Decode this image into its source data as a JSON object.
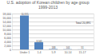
{
  "chart_data": {
    "type": "bar",
    "title": "U.S. adoption of Korean children by age group",
    "subtitle": "1999-2013",
    "categories": [
      "Under 1",
      "1-4",
      "5-9",
      "10-14",
      "15-17"
    ],
    "values": [
      16995,
      3561,
      183,
      101,
      51
    ],
    "value_labels": [
      "16,995",
      "3,561",
      "183",
      "101",
      "51"
    ],
    "data_labels": true,
    "color": "#4f81bd",
    "ylim": [
      0,
      18000
    ],
    "yticks": [
      0,
      {
        "value": 2000,
        "label": "2,000"
      },
      {
        "value": 4000,
        "label": "4,000"
      },
      {
        "value": 6000,
        "label": "6,000"
      },
      {
        "value": 8000,
        "label": "8,000"
      },
      {
        "value": 10000,
        "label": "10,000"
      },
      {
        "value": 12000,
        "label": "12,000"
      },
      {
        "value": 14000,
        "label": "14,000"
      },
      {
        "value": 16000,
        "label": "16,000"
      },
      {
        "value": 18000,
        "label": "18,000"
      }
    ],
    "grid": true,
    "annotations": [
      "Total 20,891"
    ]
  }
}
